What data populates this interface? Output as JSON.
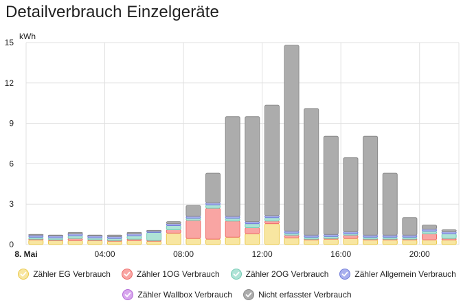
{
  "card": {
    "title": "Detailverbrauch Einzelgeräte"
  },
  "chart_data": {
    "type": "bar",
    "stacked": true,
    "yunit": "kWh",
    "ylim": [
      0,
      15
    ],
    "yticks": [
      0,
      3,
      6,
      9,
      12,
      15
    ],
    "xtick_labels": [
      {
        "index": 0,
        "label": "8. Mai",
        "bold": true
      },
      {
        "index": 4,
        "label": "04:00"
      },
      {
        "index": 8,
        "label": "08:00"
      },
      {
        "index": 12,
        "label": "12:00"
      },
      {
        "index": 16,
        "label": "16:00"
      },
      {
        "index": 20,
        "label": "20:00"
      }
    ],
    "categories": [
      "00:00",
      "01:00",
      "02:00",
      "03:00",
      "04:00",
      "05:00",
      "06:00",
      "07:00",
      "08:00",
      "09:00",
      "10:00",
      "11:00",
      "12:00",
      "13:00",
      "14:00",
      "15:00",
      "16:00",
      "17:00",
      "18:00",
      "19:00",
      "20:00",
      "21:00"
    ],
    "series": [
      {
        "name": "Zähler EG Verbrauch",
        "fill": "#f8e6a1",
        "stroke": "#e9c84a",
        "values": [
          0.35,
          0.3,
          0.3,
          0.3,
          0.25,
          0.3,
          0.25,
          0.85,
          0.45,
          0.4,
          0.55,
          0.8,
          1.55,
          0.5,
          0.35,
          0.4,
          0.45,
          0.35,
          0.35,
          0.35,
          0.35,
          0.35
        ]
      },
      {
        "name": "Zähler 1OG Verbrauch",
        "fill": "#f9a5a3",
        "stroke": "#ee6c69",
        "values": [
          0.05,
          0.05,
          0.15,
          0.05,
          0.05,
          0.1,
          0.05,
          0.25,
          1.35,
          2.3,
          1.2,
          0.45,
          0.2,
          0.2,
          0.05,
          0.05,
          0.25,
          0.05,
          0.05,
          0.05,
          0.45,
          0.1
        ]
      },
      {
        "name": "Zähler 2OG Verbrauch",
        "fill": "#aee3d6",
        "stroke": "#73cbb4",
        "values": [
          0.15,
          0.15,
          0.2,
          0.15,
          0.15,
          0.25,
          0.6,
          0.3,
          0.15,
          0.25,
          0.2,
          0.3,
          0.25,
          0.15,
          0.15,
          0.15,
          0.1,
          0.15,
          0.15,
          0.15,
          0.2,
          0.35
        ]
      },
      {
        "name": "Zähler Allgemein Verbrauch",
        "fill": "#a9b0ee",
        "stroke": "#6f7ad8",
        "values": [
          0.15,
          0.15,
          0.15,
          0.15,
          0.15,
          0.15,
          0.1,
          0.15,
          0.15,
          0.15,
          0.15,
          0.15,
          0.15,
          0.15,
          0.15,
          0.15,
          0.15,
          0.15,
          0.15,
          0.15,
          0.15,
          0.15
        ]
      },
      {
        "name": "Zähler Wallbox Verbrauch",
        "fill": "#d8a6ee",
        "stroke": "#b46ad8",
        "values": [
          0,
          0,
          0,
          0,
          0,
          0,
          0,
          0,
          0,
          0,
          0,
          0,
          0,
          0,
          0,
          0,
          0,
          0,
          0,
          0,
          0,
          0
        ]
      },
      {
        "name": "Nicht erfasster Verbrauch",
        "fill": "#acacac",
        "stroke": "#8a8a8a",
        "values": [
          0.05,
          0.05,
          0.1,
          0.05,
          0.1,
          0.1,
          0.05,
          0.15,
          0.8,
          2.2,
          7.4,
          7.8,
          8.2,
          13.8,
          9.4,
          7.3,
          5.5,
          7.35,
          4.6,
          1.3,
          0.3,
          0.15
        ]
      }
    ],
    "legend_position": "bottom",
    "grid": true
  }
}
